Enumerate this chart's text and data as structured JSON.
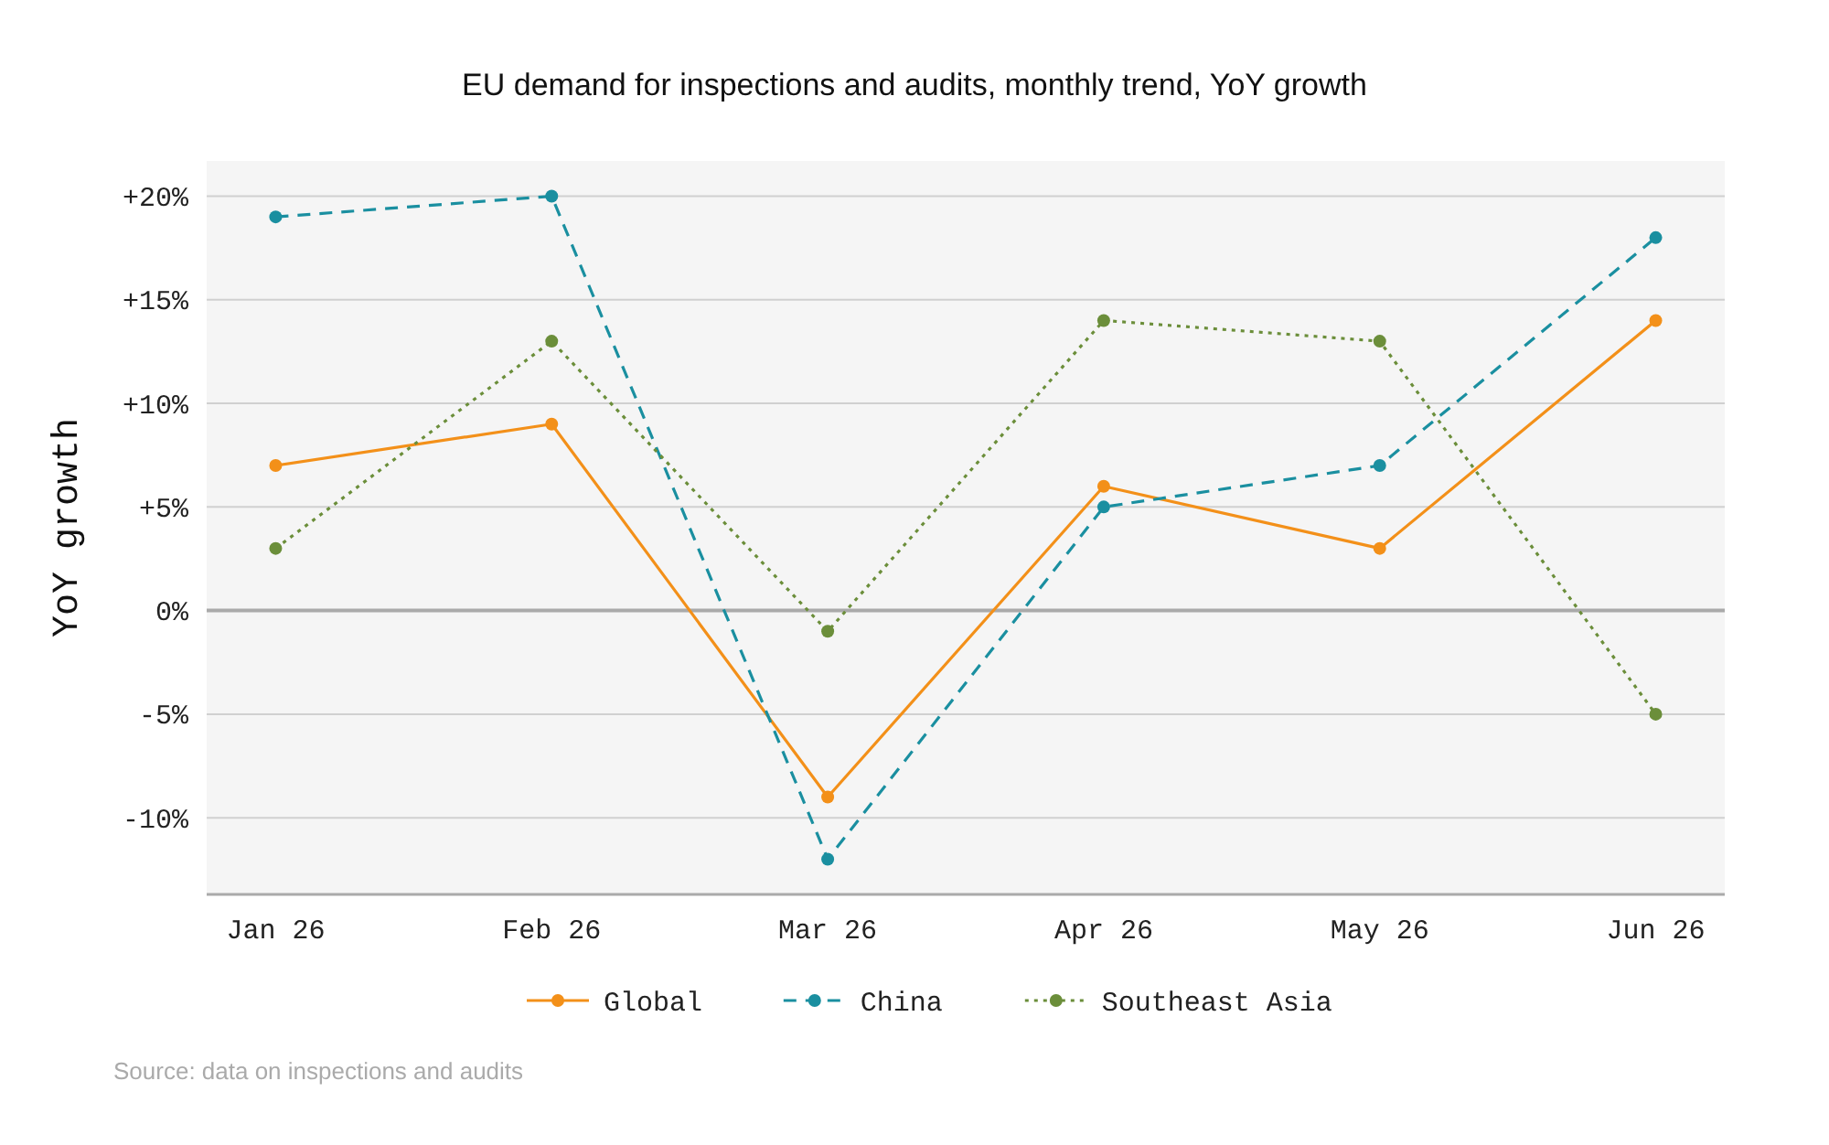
{
  "chart_data": {
    "type": "line",
    "title": "EU demand for inspections and audits, monthly trend, YoY growth",
    "ylabel": "YoY growth",
    "categories": [
      "Jan 26",
      "Feb 26",
      "Mar 26",
      "Apr 26",
      "May 26",
      "Jun 26"
    ],
    "series": [
      {
        "name": "Global",
        "color": "#f39019",
        "values": [
          7,
          9,
          -9,
          6,
          3,
          14
        ],
        "line_style": "solid"
      },
      {
        "name": "China",
        "color": "#1a8fa0",
        "values": [
          19,
          20,
          -12,
          5,
          7,
          18
        ],
        "line_style": "dashed"
      },
      {
        "name": "Southeast Asia",
        "color": "#6b8e3a",
        "values": [
          3,
          13,
          -1,
          14,
          13,
          -5
        ],
        "line_style": "dotted"
      }
    ],
    "ylim": [
      -13.7,
      21.7
    ],
    "yticks": [
      {
        "value": -10,
        "label": "-10%"
      },
      {
        "value": -5,
        "label": "-5%"
      },
      {
        "value": 0,
        "label": "0%"
      },
      {
        "value": 5,
        "label": "+5%"
      },
      {
        "value": 10,
        "label": "+10%"
      },
      {
        "value": 15,
        "label": "+15%"
      },
      {
        "value": 20,
        "label": "+20%"
      }
    ],
    "grid": "y",
    "legend": "bottom",
    "marker": "circle",
    "annotations": [
      "Source: data on inspections and audits"
    ]
  }
}
